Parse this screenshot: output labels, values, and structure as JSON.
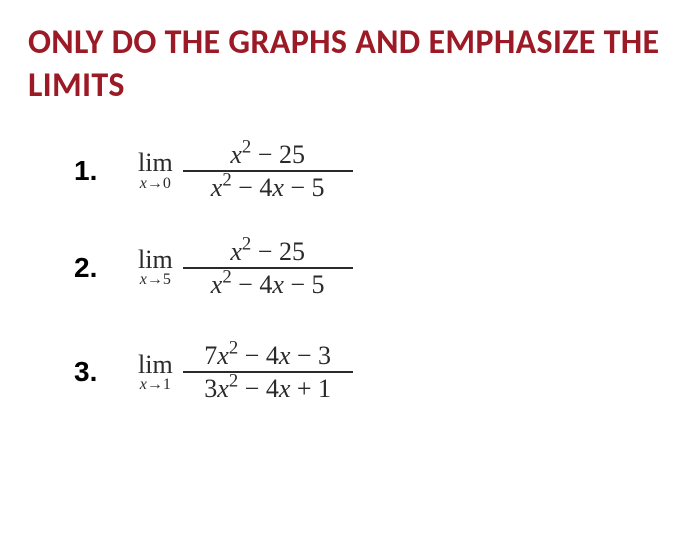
{
  "headline": {
    "text": "ONLY DO THE GRAPHS AND EMPHASIZE THE LIMITS",
    "color": "#9c1a26",
    "font_family": "Calibri, Arial, sans-serif",
    "font_weight": 700,
    "font_size_pt": 26
  },
  "math_text_color": "#2a2a2a",
  "number_font_family": "Arial, Helvetica, sans-serif",
  "math_font_family": "Times New Roman, Georgia, serif",
  "problems": [
    {
      "number_label": "1.",
      "lim_word": "lim",
      "approach_var": "x",
      "approach_arrow": "→",
      "approach_value": "0",
      "numerator_html": "<i>x</i><sup>2</sup> − 25",
      "denominator_html": "<i>x</i><sup>2</sup> − 4<i>x</i> − 5"
    },
    {
      "number_label": "2.",
      "lim_word": "lim",
      "approach_var": "x",
      "approach_arrow": "→",
      "approach_value": "5",
      "numerator_html": "<i>x</i><sup>2</sup> − 25",
      "denominator_html": "<i>x</i><sup>2</sup> − 4<i>x</i> − 5"
    },
    {
      "number_label": "3.",
      "lim_word": "lim",
      "approach_var": "x",
      "approach_arrow": "→",
      "approach_value": "1",
      "numerator_html": "7<i>x</i><sup>2</sup> − 4<i>x</i> − 3",
      "denominator_html": "3<i>x</i><sup>2</sup> − 4<i>x</i> + 1"
    }
  ]
}
